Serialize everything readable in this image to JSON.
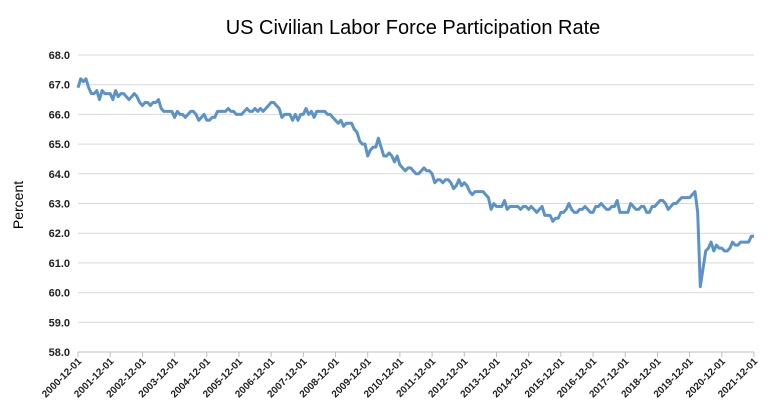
{
  "chart_data": {
    "type": "line",
    "title": "US Civilian Labor Force Participation Rate",
    "xlabel": "",
    "ylabel": "Percent",
    "ylim": [
      58,
      68
    ],
    "yticks": [
      "58.0",
      "59.0",
      "60.0",
      "61.0",
      "62.0",
      "63.0",
      "64.0",
      "65.0",
      "66.0",
      "67.0",
      "68.0"
    ],
    "xticks": [
      "2000-12-01",
      "2001-12-01",
      "2002-12-01",
      "2003-12-01",
      "2004-12-01",
      "2005-12-01",
      "2006-12-01",
      "2007-12-01",
      "2008-12-01",
      "2009-12-01",
      "2010-12-01",
      "2011-12-01",
      "2012-12-01",
      "2013-12-01",
      "2014-12-01",
      "2015-12-01",
      "2016-12-01",
      "2017-12-01",
      "2018-12-01",
      "2019-12-01",
      "2020-12-01",
      "2021-12-01"
    ],
    "xrange": [
      "2000-12-01",
      "2021-12-01"
    ],
    "grid": "horizontal",
    "legend": "none",
    "line_color": "#5b93c9",
    "series": [
      {
        "monthly_from": "2000-12-01",
        "values": [
          66.9,
          67.2,
          67.1,
          67.2,
          66.9,
          66.7,
          66.7,
          66.8,
          66.5,
          66.8,
          66.7,
          66.7,
          66.7,
          66.5,
          66.8,
          66.6,
          66.7,
          66.7,
          66.6,
          66.5,
          66.6,
          66.7,
          66.6,
          66.4,
          66.3,
          66.4,
          66.4,
          66.3,
          66.4,
          66.4,
          66.5,
          66.2,
          66.1,
          66.1,
          66.1,
          66.1,
          65.9,
          66.1,
          66.0,
          66.0,
          65.9,
          66.0,
          66.1,
          66.1,
          66.0,
          65.8,
          65.9,
          66.0,
          65.8,
          65.8,
          65.9,
          65.9,
          66.1,
          66.1,
          66.1,
          66.1,
          66.2,
          66.1,
          66.1,
          66.0,
          66.0,
          66.0,
          66.1,
          66.2,
          66.1,
          66.1,
          66.2,
          66.1,
          66.2,
          66.1,
          66.2,
          66.3,
          66.4,
          66.4,
          66.3,
          66.2,
          65.9,
          66.0,
          66.0,
          66.0,
          65.8,
          66.0,
          65.8,
          66.0,
          66.0,
          66.2,
          66.0,
          66.1,
          65.9,
          66.1,
          66.1,
          66.1,
          66.1,
          66.0,
          66.0,
          65.9,
          65.8,
          65.7,
          65.8,
          65.6,
          65.7,
          65.7,
          65.7,
          65.5,
          65.4,
          65.1,
          65.0,
          65.0,
          64.6,
          64.8,
          64.9,
          64.9,
          65.2,
          64.9,
          64.6,
          64.6,
          64.7,
          64.6,
          64.4,
          64.6,
          64.3,
          64.2,
          64.1,
          64.2,
          64.2,
          64.1,
          64.0,
          64.0,
          64.1,
          64.2,
          64.1,
          64.1,
          64.0,
          63.7,
          63.8,
          63.8,
          63.7,
          63.8,
          63.8,
          63.7,
          63.5,
          63.6,
          63.8,
          63.6,
          63.7,
          63.6,
          63.4,
          63.3,
          63.4,
          63.4,
          63.4,
          63.4,
          63.3,
          63.2,
          62.8,
          63.0,
          62.9,
          62.9,
          62.9,
          63.1,
          62.8,
          62.9,
          62.9,
          62.9,
          62.9,
          62.8,
          62.9,
          62.9,
          62.8,
          62.9,
          62.8,
          62.7,
          62.8,
          62.9,
          62.6,
          62.6,
          62.6,
          62.4,
          62.5,
          62.5,
          62.7,
          62.7,
          62.8,
          63.0,
          62.8,
          62.7,
          62.7,
          62.8,
          62.8,
          62.9,
          62.8,
          62.7,
          62.7,
          62.9,
          62.9,
          63.0,
          62.9,
          62.8,
          62.8,
          62.9,
          62.9,
          63.1,
          62.7,
          62.7,
          62.7,
          62.7,
          63.0,
          62.9,
          62.8,
          62.8,
          62.9,
          62.9,
          62.7,
          62.7,
          62.9,
          62.9,
          63.0,
          63.1,
          63.1,
          63.0,
          62.8,
          62.9,
          63.0,
          63.0,
          63.1,
          63.2,
          63.2,
          63.2,
          63.2,
          63.3,
          63.4,
          62.7,
          60.2,
          60.8,
          61.4,
          61.5,
          61.7,
          61.4,
          61.6,
          61.5,
          61.5,
          61.4,
          61.4,
          61.5,
          61.7,
          61.6,
          61.6,
          61.7,
          61.7,
          61.7,
          61.7,
          61.9,
          61.9
        ]
      }
    ]
  }
}
